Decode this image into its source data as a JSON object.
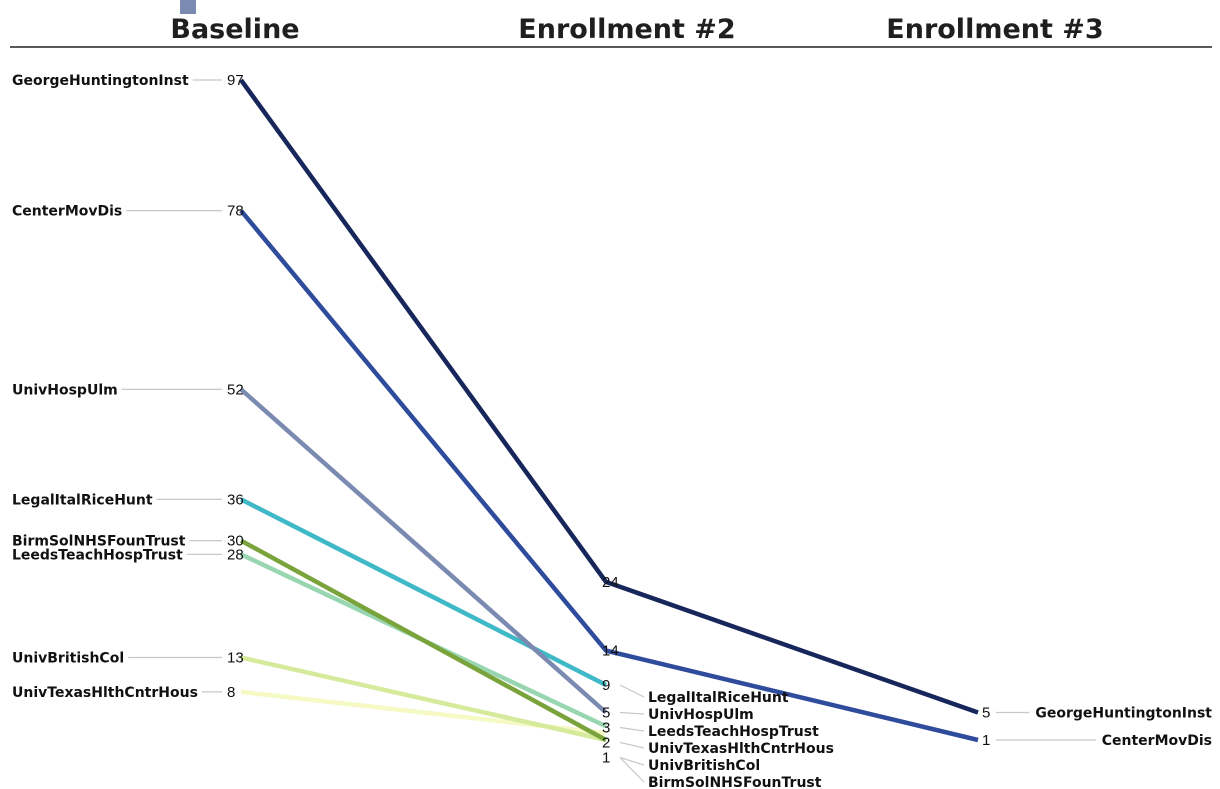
{
  "chart_data": {
    "type": "line",
    "title": "",
    "columns": [
      "Baseline",
      "Enrollment #2",
      "Enrollment #3"
    ],
    "series": [
      {
        "name": "GeorgeHuntingtonInst",
        "color": "#17275c",
        "values": [
          97,
          24,
          5
        ]
      },
      {
        "name": "CenterMovDis",
        "color": "#2f4c9c",
        "values": [
          78,
          14,
          1
        ]
      },
      {
        "name": "UnivHospUlm",
        "color": "#7b8ab0",
        "values": [
          52,
          5,
          null
        ]
      },
      {
        "name": "LegalItalRiceHunt",
        "color": "#3fb8c8",
        "values": [
          36,
          9,
          null
        ]
      },
      {
        "name": "BirmSolNHSFounTrust",
        "color": "#7aa33c",
        "values": [
          30,
          1,
          null
        ]
      },
      {
        "name": "LeedsTeachHospTrust",
        "color": "#97d6b0",
        "values": [
          28,
          3,
          null
        ]
      },
      {
        "name": "UnivBritishCol",
        "color": "#d6ea9c",
        "values": [
          13,
          1,
          null
        ]
      },
      {
        "name": "UnivTexasHlthCntrHous",
        "color": "#f5f9c4",
        "values": [
          8,
          2,
          null
        ]
      }
    ],
    "enrollment2_label_order": [
      "LegalItalRiceHunt",
      "UnivHospUlm",
      "LeedsTeachHospTrust",
      "UnivTexasHlthCntrHous",
      "UnivBritishCol",
      "BirmSolNHSFounTrust"
    ],
    "enrollment2_value_order": [
      24,
      14,
      9,
      5,
      3,
      2,
      1
    ],
    "ylim": [
      0,
      100
    ],
    "grid": false,
    "legend": "none"
  }
}
